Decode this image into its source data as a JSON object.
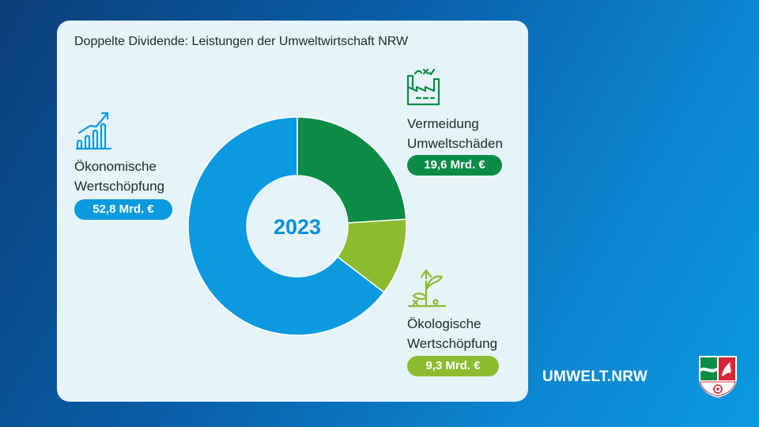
{
  "title": "Doppelte Dividende: Leistungen der Umweltwirtschaft NRW",
  "chart_data": {
    "type": "pie",
    "center_label": "2023",
    "categories": [
      "Vermeidung Umweltschäden",
      "Ökologische Wertschöpfung",
      "Ökonomische Wertschöpfung"
    ],
    "values": [
      19.6,
      9.3,
      52.8
    ],
    "unit": "Mrd. €",
    "colors": [
      "#0a8c45",
      "#8dbb2e",
      "#0b9ae0"
    ],
    "labels": [
      {
        "line1": "Vermeidung",
        "line2": "Umweltschäden",
        "value_label": "19,6 Mrd. €",
        "icon": "factory-icon"
      },
      {
        "line1": "Ökologische",
        "line2": "Wertschöpfung",
        "value_label": "9,3 Mrd. €",
        "icon": "plant-growth-icon"
      },
      {
        "line1": "Ökonomische",
        "line2": "Wertschöpfung",
        "value_label": "52,8 Mrd. €",
        "icon": "bar-chart-growth-icon"
      }
    ]
  },
  "brand": "UMWELT.NRW",
  "logo": "nrw-coat-of-arms"
}
